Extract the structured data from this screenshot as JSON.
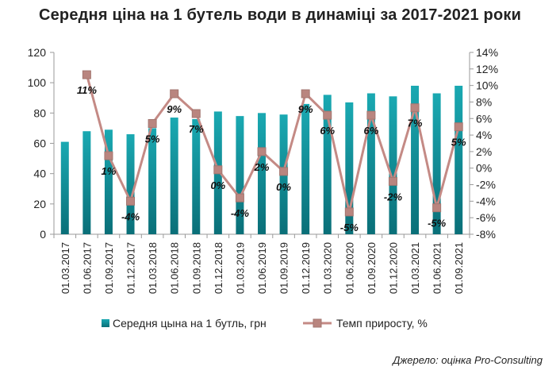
{
  "chart_data": {
    "type": "bar+line",
    "title": "Середня ціна на 1 бутель води в динаміці за 2017-2021 роки",
    "categories": [
      "01.03.2017",
      "01.06.2017",
      "01.09.2017",
      "01.12.2017",
      "01.03.2018",
      "01.06.2018",
      "01.09.2018",
      "01.12.2018",
      "01.03.2019",
      "01.06.2019",
      "01.09.2019",
      "01.12.2019",
      "01.03.2020",
      "01.06.2020",
      "01.09.2020",
      "01.12.2020",
      "01.03.2021",
      "01.06.2021",
      "01.09.2021"
    ],
    "series": [
      {
        "name": "Середня цына на 1 бутль, грн",
        "kind": "bar",
        "axis": "left",
        "color": "#16959e",
        "values": [
          61,
          68,
          69,
          66,
          70,
          77,
          76,
          81,
          78,
          80,
          79,
          86,
          92,
          87,
          93,
          91,
          98,
          93,
          98
        ]
      },
      {
        "name": "Темп приросту, %",
        "kind": "line",
        "axis": "right",
        "color": "#c48a85",
        "values": [
          null,
          11.3,
          1.5,
          -4.0,
          5.4,
          9.0,
          6.6,
          -0.2,
          -3.6,
          2.0,
          -0.4,
          9.0,
          6.4,
          -5.3,
          6.4,
          -1.6,
          7.3,
          -4.8,
          5.0
        ],
        "labels": [
          "",
          "11%",
          "1%",
          "-4%",
          "5%",
          "9%",
          "7%",
          "0%",
          "-4%",
          "2%",
          "0%",
          "9%",
          "6%",
          "-5%",
          "6%",
          "-2%",
          "7%",
          "-5%",
          "5%"
        ]
      }
    ],
    "y_left": {
      "min": 0,
      "max": 120,
      "step": 20,
      "ticks": [
        "0",
        "20",
        "40",
        "60",
        "80",
        "100",
        "120"
      ]
    },
    "y_right": {
      "min": -8,
      "max": 14,
      "step": 2,
      "ticks": [
        "-8%",
        "-6%",
        "-4%",
        "-2%",
        "0%",
        "2%",
        "4%",
        "6%",
        "8%",
        "10%",
        "12%",
        "14%"
      ]
    },
    "grid": false,
    "legend_position": "bottom"
  },
  "legend": {
    "bar_label": "Середня цына на 1 бутль, грн",
    "line_label": "Темп приросту, %"
  },
  "source": "Джерело: оцінка Pro-Consulting"
}
